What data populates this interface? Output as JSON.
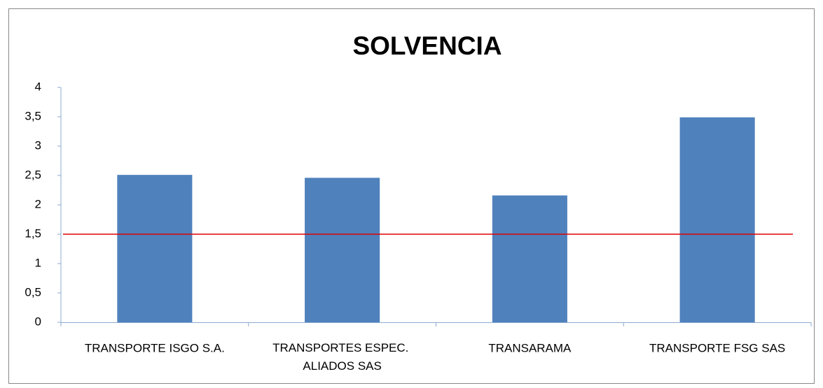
{
  "chart_data": {
    "type": "bar",
    "title": "SOLVENCIA",
    "categories": [
      "TRANSPORTE ISGO S.A.",
      "TRANSPORTES ESPEC. ALIADOS SAS",
      "TRANSARAMA",
      "TRANSPORTE FSG SAS"
    ],
    "values": [
      2.51,
      2.46,
      2.16,
      3.49
    ],
    "color": "#4f81bd",
    "reference_line": {
      "value": 1.5,
      "color": "#e00000"
    },
    "ylim": [
      0,
      4
    ],
    "yticks": [
      0,
      {
        "value": 0.5,
        "label": "0,5"
      },
      1,
      {
        "value": 1.5,
        "label": "1,5"
      },
      2,
      {
        "value": 2.5,
        "label": "2,5"
      },
      3,
      {
        "value": 3.5,
        "label": "3,5"
      },
      4
    ],
    "grid": false
  }
}
